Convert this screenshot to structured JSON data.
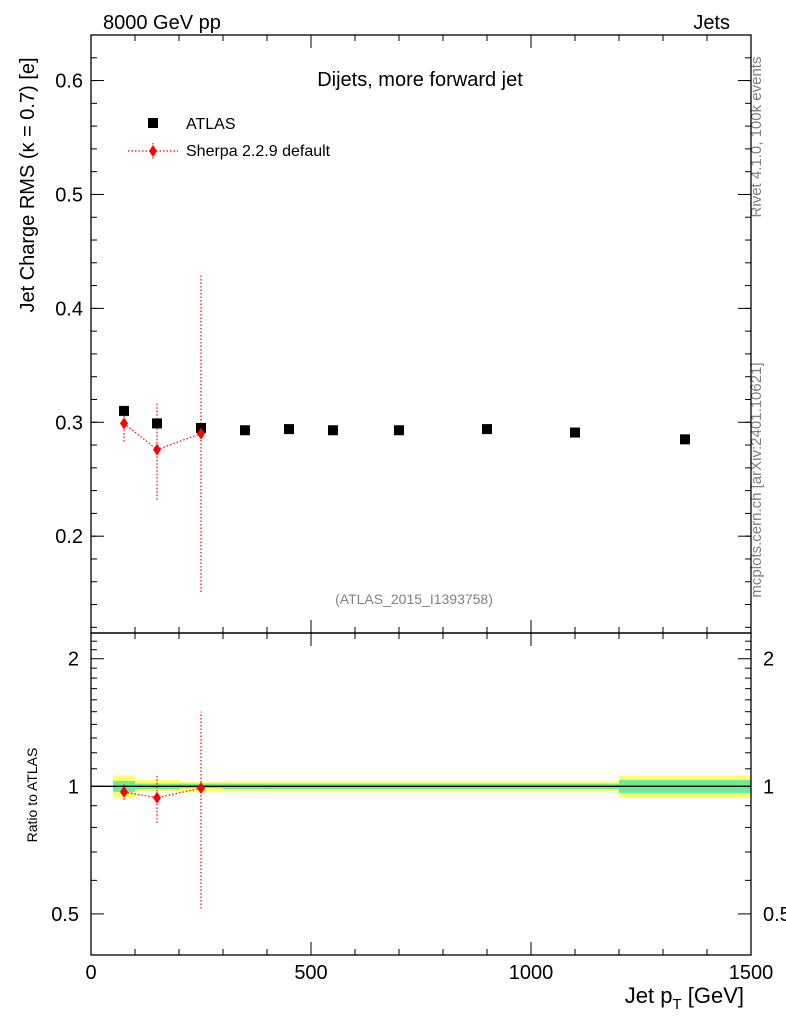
{
  "header": {
    "left": "8000 GeV pp",
    "right": "Jets"
  },
  "side_text": {
    "rivet": "Rivet 4.1.0,  100k events",
    "mcplots": "mcplots.cern.ch [arXiv:2401.10621]"
  },
  "chart_data": [
    {
      "type": "scatter",
      "title": "Dijets, more forward jet",
      "ylabel": "Jet Charge RMS (κ = 0.7) [e]",
      "xlim": [
        0,
        1500
      ],
      "ylim": [
        0.115,
        0.64
      ],
      "yticks": [
        0.2,
        0.3,
        0.4,
        0.5,
        0.6
      ],
      "ytick_labels": [
        "0.2",
        "0.3",
        "0.4",
        "0.5",
        "0.6"
      ],
      "watermark": "(ATLAS_2015_I1393758)",
      "legend": {
        "placement": "top-left"
      },
      "series": [
        {
          "name": "ATLAS",
          "color": "#000000",
          "marker": "square",
          "x": [
            75,
            150,
            250,
            350,
            450,
            550,
            700,
            900,
            1100,
            1350
          ],
          "y": [
            0.31,
            0.299,
            0.295,
            0.293,
            0.294,
            0.293,
            0.293,
            0.294,
            0.291,
            0.285
          ]
        },
        {
          "name": "Sherpa 2.2.9 default",
          "color": "#ff0000",
          "marker": "diamond",
          "line": "dotted",
          "x": [
            75,
            150,
            250
          ],
          "y": [
            0.299,
            0.276,
            0.29
          ],
          "yerr_low": [
            0.283,
            0.232,
            0.151
          ],
          "yerr_high": [
            0.311,
            0.318,
            0.429
          ]
        }
      ]
    },
    {
      "type": "scatter",
      "ylabel": "Ratio to ATLAS",
      "xlabel": "Jet p_T [GeV]",
      "xlim": [
        0,
        1500
      ],
      "ylim": [
        0.4,
        2.3
      ],
      "scale": "log",
      "xticks": [
        0,
        500,
        1000,
        1500
      ],
      "xtick_labels": [
        "0",
        "500",
        "1000",
        "1500"
      ],
      "yticks": [
        0.5,
        1,
        2
      ],
      "ytick_labels": [
        "0.5",
        "1",
        "2"
      ],
      "reference_line": 1,
      "bands": {
        "edges": [
          50,
          100,
          200,
          300,
          400,
          500,
          600,
          800,
          1000,
          1200,
          1500
        ],
        "stat_low": [
          0.97,
          0.985,
          0.99,
          0.985,
          0.985,
          0.985,
          0.985,
          0.985,
          0.985,
          0.965
        ],
        "stat_high": [
          1.03,
          1.015,
          1.015,
          1.015,
          1.015,
          1.015,
          1.015,
          1.015,
          1.015,
          1.035
        ],
        "total_low": [
          0.94,
          0.975,
          0.975,
          0.97,
          0.975,
          0.975,
          0.975,
          0.975,
          0.975,
          0.94
        ],
        "total_high": [
          1.06,
          1.035,
          1.025,
          1.03,
          1.03,
          1.03,
          1.03,
          1.03,
          1.03,
          1.06
        ],
        "stat_color": "#66ee99",
        "total_color": "#ffff66"
      },
      "series": [
        {
          "name": "Sherpa 2.2.9 default",
          "color": "#ff0000",
          "marker": "diamond",
          "line": "dotted",
          "x": [
            75,
            150,
            250
          ],
          "y": [
            0.97,
            0.94,
            0.99
          ],
          "yerr_low": [
            0.93,
            0.82,
            0.515
          ],
          "yerr_high": [
            1.01,
            1.07,
            1.5
          ]
        }
      ]
    }
  ]
}
